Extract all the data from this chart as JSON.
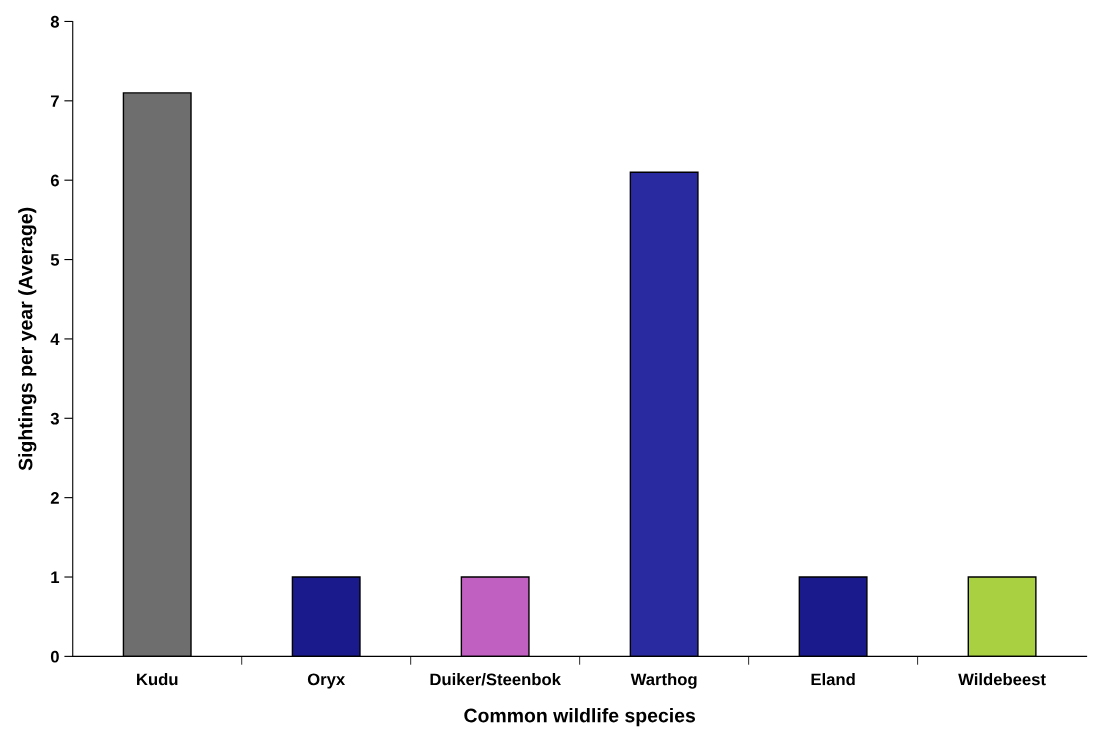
{
  "chart_data": {
    "type": "bar",
    "xlabel": "Common wildlife species",
    "ylabel": "Sightings per year (Average)",
    "categories": [
      "Kudu",
      "Oryx",
      "Duiker/Steenbok",
      "Warthog",
      "Eland",
      "Wildebeest"
    ],
    "values": [
      7.1,
      1,
      1,
      6.1,
      1,
      1
    ],
    "colors": [
      "#6e6e6e",
      "#1a1a8c",
      "#c060c0",
      "#2a2aa0",
      "#1a1a8c",
      "#a8d040"
    ],
    "ylim": [
      0,
      8
    ],
    "yticks": [
      0,
      1,
      2,
      3,
      4,
      5,
      6,
      7,
      8
    ],
    "grid": false,
    "legend": false
  }
}
